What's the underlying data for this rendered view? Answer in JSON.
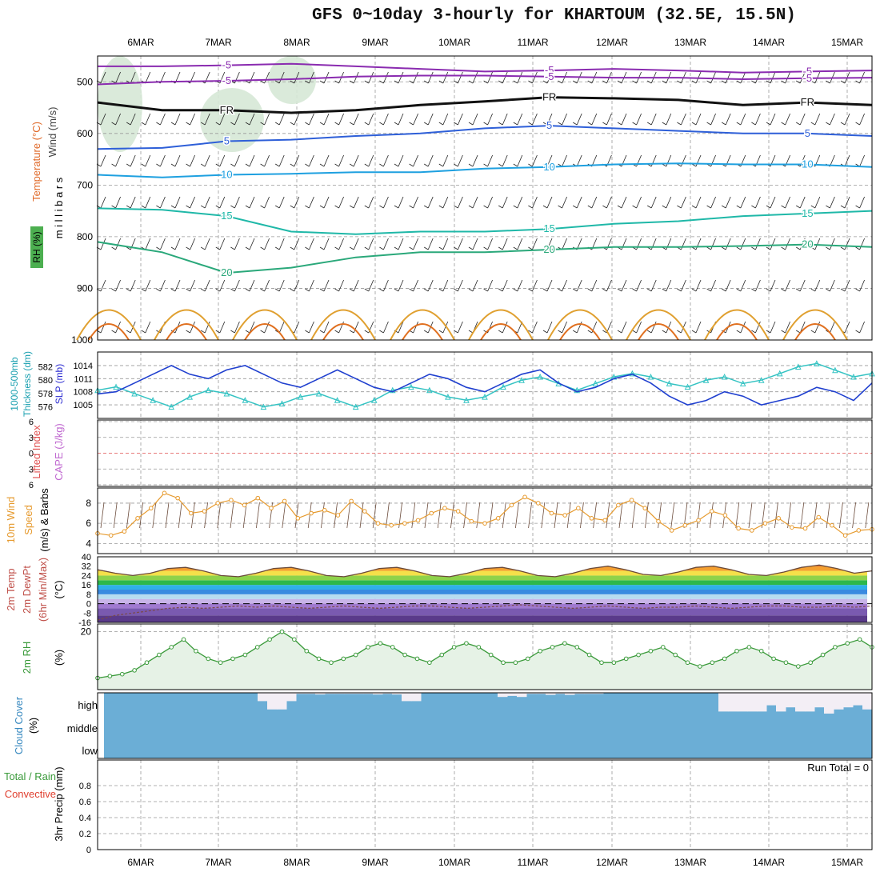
{
  "title": "GFS 0~10day 3-hourly for KHARTOUM (32.5E, 15.5N)",
  "days": [
    "6MAR",
    "7MAR",
    "8MAR",
    "9MAR",
    "10MAR",
    "11MAR",
    "12MAR",
    "13MAR",
    "14MAR",
    "15MAR"
  ],
  "colors": {
    "frame": "#000000",
    "grid": "#999999",
    "rh_fill": "#d6e8d6",
    "cloud": "#6baed6",
    "cloud_clear": "#f3eef5",
    "speed": "#e69a2e",
    "thick": "#34c3c3",
    "slp": "#1f3fcf",
    "rh2m": "#3a9a3a",
    "cape_dash": "#e05050"
  },
  "chart_data": [
    {
      "type": "heatmap",
      "name": "upper-air",
      "title": "Wind (m/s)",
      "labels": {
        "wind": "Wind (m/s)",
        "temp": "Temperature (°C)",
        "rh": "RH (%)",
        "mb": "m i l l i b a r s"
      },
      "ylim": [
        1000,
        450
      ],
      "yticks": [
        500,
        600,
        700,
        800,
        900,
        1000
      ],
      "contours": [
        {
          "label": "-5",
          "color": "#8a2bb0",
          "p": [
            470,
            470,
            468,
            465,
            470,
            475,
            480,
            478,
            475,
            478,
            482,
            480,
            478
          ]
        },
        {
          "label": "-5",
          "color": "#8a2bb0",
          "p": [
            505,
            500,
            498,
            495,
            490,
            488,
            488,
            490,
            492,
            492,
            495,
            493,
            492
          ]
        },
        {
          "label": "FR",
          "color": "#111111",
          "p": [
            540,
            555,
            555,
            560,
            555,
            545,
            538,
            530,
            532,
            535,
            545,
            540,
            545
          ]
        },
        {
          "label": "5",
          "color": "#2e5fd8",
          "p": [
            630,
            628,
            615,
            612,
            605,
            600,
            590,
            585,
            590,
            595,
            600,
            600,
            605
          ]
        },
        {
          "label": "10",
          "color": "#1ea0e0",
          "p": [
            680,
            685,
            680,
            678,
            675,
            675,
            668,
            665,
            660,
            658,
            660,
            660,
            665
          ]
        },
        {
          "label": "15",
          "color": "#1fb8a8",
          "p": [
            745,
            748,
            760,
            790,
            795,
            790,
            790,
            785,
            775,
            770,
            760,
            755,
            750
          ]
        },
        {
          "label": "20",
          "color": "#2aa87a",
          "p": [
            810,
            830,
            870,
            860,
            840,
            830,
            830,
            825,
            820,
            820,
            818,
            815,
            820
          ]
        }
      ]
    },
    {
      "type": "line",
      "name": "thickness-slp",
      "labels": {
        "thick": "1000-500mb Thickness (dm)",
        "slp": "SLP (mb)"
      },
      "thick_ticks": [
        576,
        578,
        580,
        582
      ],
      "slp_ticks": [
        1005,
        1008,
        1011,
        1014
      ],
      "series": [
        {
          "name": "1000-500mb Thickness",
          "values": [
            578.5,
            579,
            578,
            577,
            576,
            577.5,
            578.5,
            578,
            577,
            576,
            576.5,
            577.5,
            578,
            577,
            576,
            577,
            578.5,
            579,
            578.5,
            577.5,
            577,
            577.5,
            579,
            580,
            580.5,
            579.5,
            578.5,
            579.5,
            580.5,
            581,
            580.5,
            579.5,
            579,
            580,
            580.5,
            579.5,
            580,
            581,
            582,
            582.5,
            581.5,
            580.5,
            581
          ]
        },
        {
          "name": "SLP",
          "values": [
            1007.5,
            1008,
            1010,
            1012,
            1014,
            1012,
            1011,
            1013,
            1014,
            1012,
            1010,
            1009,
            1011,
            1013,
            1011,
            1009,
            1008,
            1010,
            1012,
            1011,
            1009,
            1008,
            1010,
            1012,
            1013,
            1010,
            1008,
            1009,
            1011,
            1012,
            1010,
            1007,
            1005,
            1006,
            1008,
            1007,
            1005,
            1006,
            1007,
            1009,
            1008,
            1006,
            1010
          ]
        }
      ]
    },
    {
      "type": "line",
      "name": "stability",
      "labels": {
        "li": "Lifted Index",
        "cape": "CAPE (J/kg)"
      },
      "yticks": [
        -6,
        -3,
        0,
        3,
        6
      ],
      "series": [
        {
          "name": "Lifted Index",
          "values": []
        }
      ]
    },
    {
      "type": "line",
      "name": "10m-wind",
      "labels": {
        "wind": "10m Wind",
        "speed": "Speed",
        "barbs": "(m/s) & Barbs"
      },
      "yticks": [
        4,
        6,
        8
      ],
      "ylim": [
        3,
        9.5
      ],
      "series": [
        {
          "name": "10m Wind Speed",
          "values": [
            5,
            4.8,
            5.2,
            6.5,
            7.5,
            9,
            8.5,
            7,
            7.2,
            8,
            8.3,
            7.8,
            8.5,
            7.5,
            8.2,
            6.5,
            7,
            7.3,
            6.8,
            8.2,
            7.2,
            6,
            5.8,
            6,
            6.3,
            7,
            7.5,
            7.2,
            6.2,
            6,
            6.5,
            7.8,
            8.6,
            8,
            7,
            6.8,
            7.5,
            6.5,
            6.3,
            7.8,
            8.3,
            7.5,
            6.2,
            5.3,
            5.8,
            6.3,
            7.2,
            6.8,
            5.5,
            5.3,
            6,
            6.5,
            5.6,
            5.5,
            6.6,
            5.8,
            4.8,
            5.3,
            5.4
          ]
        }
      ]
    },
    {
      "type": "area",
      "name": "2m-temp",
      "labels": {
        "temp": "2m Temp",
        "dew": "2m DewPt",
        "minmax": "(6hr Min/Max)",
        "unit": "(°C)"
      },
      "yticks": [
        -16,
        -8,
        0,
        8,
        16,
        24,
        32,
        40
      ],
      "ylim": [
        -16,
        40
      ],
      "series": [
        {
          "name": "2m Temp",
          "values": [
            29,
            26,
            24,
            26,
            30,
            31,
            28,
            24,
            23,
            26,
            30,
            31,
            28,
            24,
            23,
            26,
            30,
            31,
            28,
            24,
            23,
            26,
            30,
            31,
            28,
            24,
            23,
            26,
            30,
            32,
            29,
            25,
            24,
            27,
            31,
            32,
            29,
            25,
            24,
            27,
            31,
            33,
            30,
            26,
            28
          ]
        },
        {
          "name": "2m DewPt",
          "values": [
            -14,
            -10,
            -8,
            -6,
            -4,
            -3,
            -4,
            -3,
            -2,
            -3,
            -2,
            -3,
            -4,
            -3,
            -2,
            -3,
            -4,
            -3,
            -2,
            -2,
            -3,
            -4,
            -3,
            -2,
            -1,
            -2,
            -3,
            -4,
            -3,
            -2,
            -3,
            -4,
            -3,
            -3,
            -2,
            -3,
            -4,
            -3,
            -2,
            -2,
            -3,
            -3,
            -2,
            -3,
            -2
          ]
        }
      ]
    },
    {
      "type": "area",
      "name": "2m-rh",
      "labels": {
        "rh": "2m RH",
        "unit": "(%)"
      },
      "yticks": [
        20
      ],
      "ylim": [
        5,
        22
      ],
      "series": [
        {
          "name": "2m RH",
          "values": [
            8,
            8.5,
            9,
            10,
            12,
            14,
            16,
            18,
            15,
            13,
            12,
            13,
            14,
            16,
            18,
            20,
            18,
            15,
            13,
            12,
            13,
            14,
            16,
            17,
            16,
            14,
            13,
            12,
            14,
            16,
            17,
            16,
            14,
            12,
            12,
            13,
            15,
            16,
            17,
            16,
            14,
            12,
            12,
            13,
            14,
            15,
            16,
            14,
            12,
            11,
            12,
            13,
            15,
            16,
            15,
            13,
            12,
            11,
            12,
            14,
            16,
            17,
            18,
            16
          ]
        }
      ]
    },
    {
      "type": "bar",
      "name": "cloud-cover",
      "labels": {
        "cloud": "Cloud Cover",
        "unit": "(%)",
        "high": "high",
        "middle": "middle",
        "low": "low"
      },
      "high_cover": [
        100,
        100,
        100,
        100,
        100,
        100,
        100,
        100,
        100,
        100,
        100,
        100,
        100,
        100,
        100,
        100,
        60,
        20,
        20,
        60,
        95,
        95,
        92,
        95,
        95,
        95,
        95,
        95,
        92,
        95,
        92,
        60,
        60,
        100,
        100,
        100,
        100,
        100,
        100,
        100,
        100,
        80,
        85,
        80,
        95,
        95,
        90,
        95,
        90,
        95,
        95,
        95,
        100,
        100,
        100,
        100,
        100,
        100,
        100,
        100,
        100,
        100,
        100,
        100,
        10,
        10,
        10,
        10,
        10,
        40,
        10,
        30,
        10,
        10,
        30,
        0,
        20,
        30,
        40,
        20
      ]
    },
    {
      "type": "bar",
      "name": "precip",
      "labels": {
        "total": "Total / Rain",
        "conv": "Convective",
        "precip": "3hr Precip (mm)"
      },
      "yticks": [
        0,
        0.2,
        0.4,
        0.6,
        0.8
      ],
      "run_total": "Run Total = 0",
      "values": []
    }
  ]
}
